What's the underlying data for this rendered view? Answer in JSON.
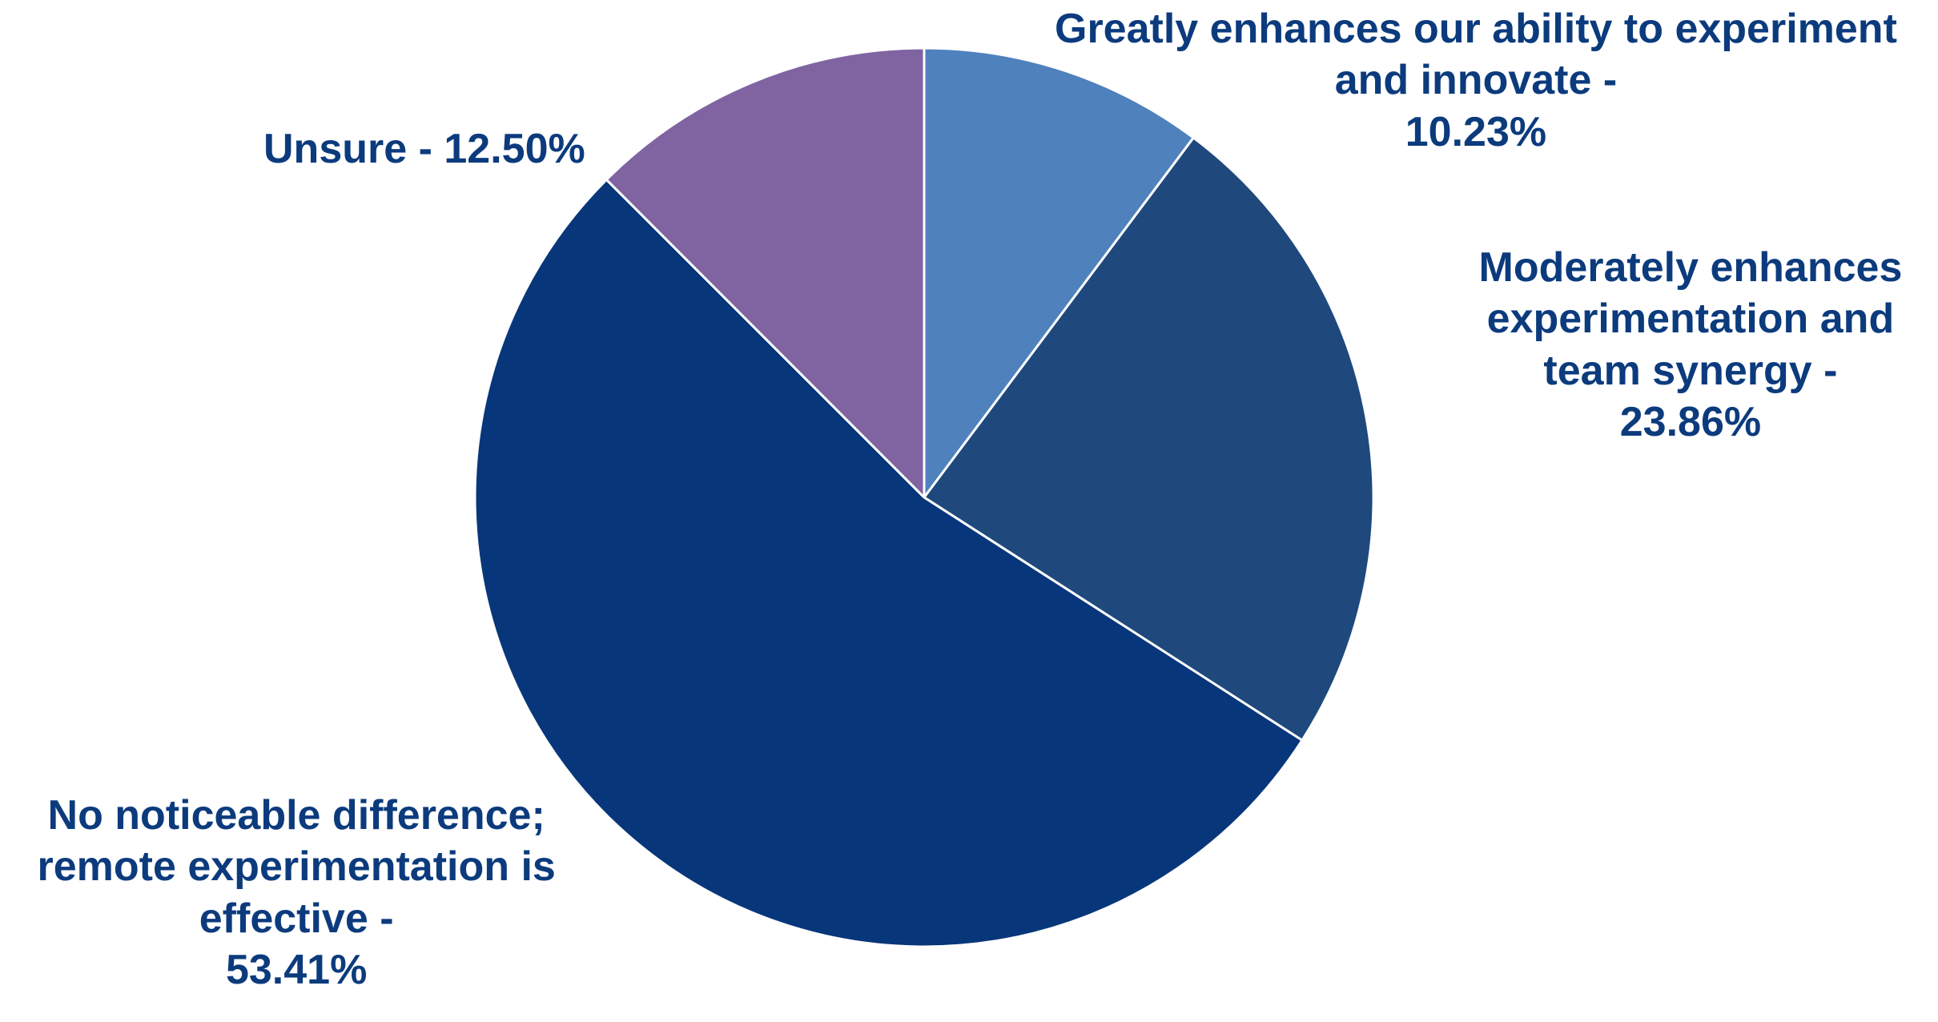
{
  "chart_data": {
    "type": "pie",
    "title": "",
    "start_angle_deg": 0,
    "direction": "clockwise",
    "slices": [
      {
        "label_lines": [
          "Greatly enhances our ability to experiment",
          "and innovate -",
          "10.23%"
        ],
        "value": 10.23,
        "color": "#4f81bd"
      },
      {
        "label_lines": [
          "Moderately enhances",
          "experimentation and",
          "team synergy -",
          "23.86%"
        ],
        "value": 23.86,
        "color": "#1f497d"
      },
      {
        "label_lines": [
          "No noticeable difference;",
          "remote experimentation is",
          "effective -",
          "53.41%"
        ],
        "value": 53.41,
        "color": "#08367a"
      },
      {
        "label_lines": [
          "Unsure - 12.50%"
        ],
        "value": 12.5,
        "color": "#8064a2"
      }
    ],
    "label_color": "#0c3b7d",
    "slice_border_color": "#ffffff"
  }
}
